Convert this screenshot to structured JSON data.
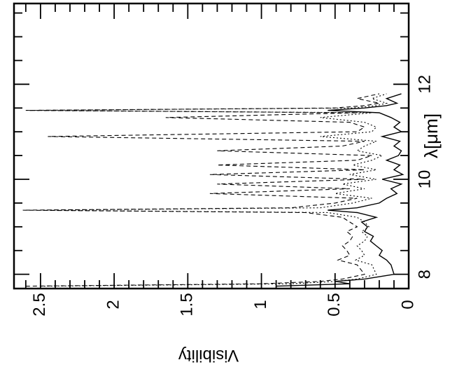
{
  "chart_data": {
    "type": "line",
    "xlabel": "λ[μm]",
    "ylabel": "Visibility",
    "xlim": [
      7.7,
      13.7
    ],
    "ylim": [
      0,
      2.68
    ],
    "x_ticks": [
      8,
      10,
      12
    ],
    "x_tick_labels": [
      "8",
      "10",
      "12"
    ],
    "y_ticks": [
      0,
      0.5,
      1,
      1.5,
      2,
      2.5
    ],
    "y_tick_labels": [
      "0",
      "0.5",
      "1",
      "1.5",
      "2",
      "2.5"
    ],
    "grid": false,
    "legend": "none",
    "orientation": "rotated 90 degrees clockwise (λ axis vertical, visibility axis horizontal)",
    "series": [
      {
        "style": "solid",
        "x": [
          7.75,
          7.8,
          7.85,
          7.9,
          8.0,
          8.2,
          8.3,
          8.4,
          8.5,
          8.6,
          8.7,
          8.8,
          8.9,
          9.0,
          9.1,
          9.2,
          9.3,
          9.35,
          9.4,
          9.5,
          9.6,
          9.7,
          9.8,
          9.9,
          10.0,
          10.1,
          10.2,
          10.3,
          10.4,
          10.5,
          10.6,
          10.7,
          10.8,
          10.9,
          11.0,
          11.1,
          11.2,
          11.3,
          11.4,
          11.45,
          11.5,
          11.55,
          11.6,
          11.7,
          11.8
        ],
        "y": [
          0.9,
          0.4,
          0.5,
          0.3,
          0.1,
          0.12,
          0.15,
          0.2,
          0.18,
          0.22,
          0.26,
          0.24,
          0.3,
          0.28,
          0.32,
          0.22,
          0.35,
          0.55,
          0.35,
          0.2,
          0.15,
          0.08,
          0.12,
          0.05,
          0.18,
          0.04,
          0.1,
          0.06,
          0.15,
          0.07,
          0.05,
          0.1,
          0.06,
          0.18,
          0.05,
          0.1,
          0.06,
          0.12,
          0.2,
          0.55,
          0.3,
          0.15,
          0.08,
          0.15,
          0.05
        ]
      },
      {
        "style": "dashed",
        "x": [
          7.75,
          7.8,
          7.85,
          7.9,
          8.0,
          8.2,
          8.3,
          8.4,
          8.5,
          8.6,
          8.7,
          8.8,
          8.9,
          9.0,
          9.1,
          9.2,
          9.3,
          9.35,
          9.4,
          9.5,
          9.6,
          9.7,
          9.8,
          9.9,
          10.0,
          10.1,
          10.2,
          10.3,
          10.4,
          10.5,
          10.6,
          10.7,
          10.8,
          10.9,
          11.0,
          11.1,
          11.2,
          11.3,
          11.4,
          11.45,
          11.5,
          11.55,
          11.6,
          11.7,
          11.8
        ],
        "y": [
          2.6,
          1.0,
          0.6,
          0.45,
          0.3,
          0.35,
          0.48,
          0.4,
          0.42,
          0.45,
          0.4,
          0.38,
          0.42,
          0.35,
          0.4,
          0.45,
          0.7,
          2.62,
          0.8,
          0.5,
          0.35,
          1.35,
          0.4,
          1.3,
          0.3,
          1.35,
          0.3,
          1.3,
          0.35,
          0.25,
          1.3,
          0.45,
          0.3,
          2.45,
          0.35,
          0.3,
          0.4,
          1.65,
          0.35,
          2.6,
          0.5,
          0.3,
          0.2,
          0.35,
          0.2
        ]
      },
      {
        "style": "dotted",
        "x": [
          7.75,
          7.8,
          7.85,
          7.9,
          8.0,
          8.2,
          8.3,
          8.4,
          8.5,
          8.6,
          8.7,
          8.8,
          8.9,
          9.0,
          9.1,
          9.2,
          9.3,
          9.35,
          9.4,
          9.5,
          9.6,
          9.7,
          9.8,
          9.9,
          10.0,
          10.1,
          10.2,
          10.3,
          10.4,
          10.5,
          10.6,
          10.7,
          10.8,
          10.9,
          11.0,
          11.1,
          11.2,
          11.3,
          11.4,
          11.45,
          11.5,
          11.55,
          11.6,
          11.7,
          11.8
        ],
        "y": [
          2.5,
          0.8,
          0.5,
          0.35,
          0.22,
          0.25,
          0.36,
          0.3,
          0.32,
          0.35,
          0.3,
          0.28,
          0.32,
          0.27,
          0.3,
          0.35,
          0.55,
          2.5,
          0.6,
          0.38,
          0.25,
          0.5,
          0.3,
          0.45,
          0.22,
          0.4,
          0.22,
          0.38,
          0.25,
          0.18,
          0.35,
          0.3,
          0.22,
          0.6,
          0.25,
          0.22,
          0.3,
          0.6,
          0.25,
          2.58,
          0.38,
          0.22,
          0.15,
          0.25,
          0.15
        ]
      }
    ]
  }
}
